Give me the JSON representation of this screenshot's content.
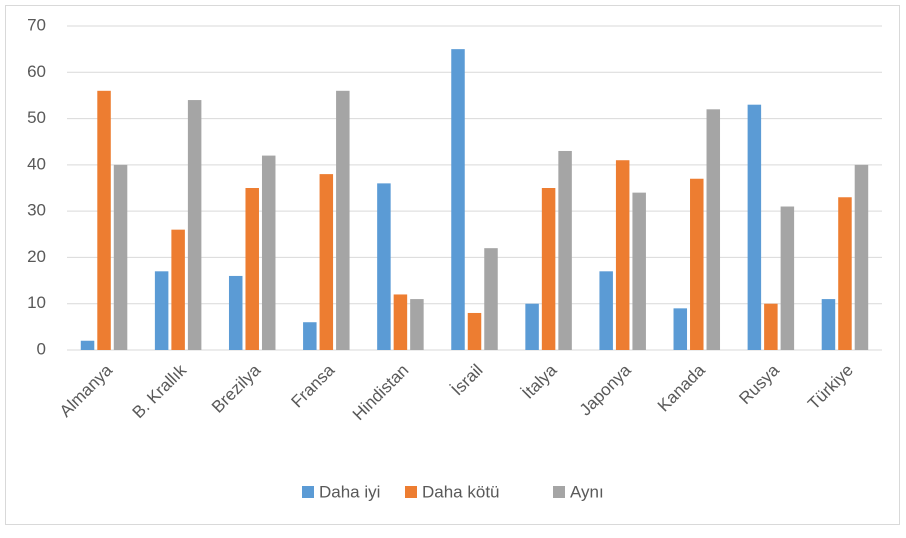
{
  "chart_data": {
    "type": "bar",
    "categories": [
      "Almanya",
      "B. Krallık",
      "Brezilya",
      "Fransa",
      "Hindistan",
      "İsrail",
      "İtalya",
      "Japonya",
      "Kanada",
      "Rusya",
      "Türkiye"
    ],
    "series": [
      {
        "name": "Daha iyi",
        "color": "#5b9bd5",
        "values": [
          2,
          17,
          16,
          6,
          36,
          65,
          10,
          17,
          9,
          53,
          11
        ]
      },
      {
        "name": "Daha kötü",
        "color": "#ed7d31",
        "values": [
          56,
          26,
          35,
          38,
          12,
          8,
          35,
          41,
          37,
          10,
          33
        ]
      },
      {
        "name": "Aynı",
        "color": "#a5a5a5",
        "values": [
          40,
          54,
          42,
          56,
          11,
          22,
          43,
          34,
          52,
          31,
          40
        ]
      }
    ],
    "ylim": [
      0,
      70
    ],
    "yticks": [
      0,
      10,
      20,
      30,
      40,
      50,
      60,
      70
    ],
    "grid": true,
    "legend": "bottom"
  }
}
